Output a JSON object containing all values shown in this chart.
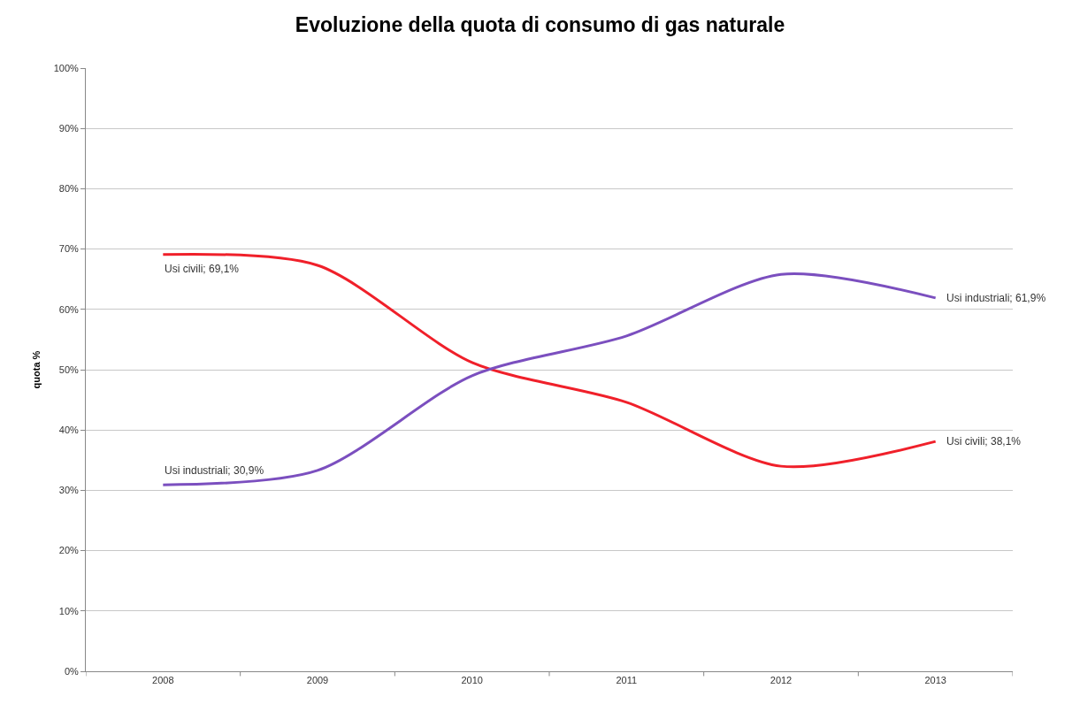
{
  "chart_data": {
    "type": "line",
    "title": "Evoluzione della quota di consumo di gas naturale",
    "ylabel": "quota %",
    "categories": [
      "2008",
      "2009",
      "2010",
      "2011",
      "2012",
      "2013"
    ],
    "series": [
      {
        "color": "#f0202a",
        "values": [
          69.1,
          67.3,
          51.2,
          44.6,
          34.0,
          38.1
        ],
        "value_labels": [
          "Usi civili; 69,1%",
          null,
          null,
          null,
          null,
          "Usi civili; 38,1%"
        ]
      },
      {
        "color": "#7b4fbf",
        "values": [
          30.9,
          33.3,
          49.0,
          55.6,
          65.8,
          61.9
        ],
        "value_labels": [
          "Usi industriali; 30,9%",
          null,
          null,
          null,
          null,
          "Usi industriali; 61,9%"
        ]
      }
    ],
    "ylim": [
      0,
      100
    ],
    "yticks": [
      {
        "value": 0,
        "label": "0%"
      },
      {
        "value": 10,
        "label": "10%"
      },
      {
        "value": 20,
        "label": "20%"
      },
      {
        "value": 30,
        "label": "30%"
      },
      {
        "value": 40,
        "label": "40%"
      },
      {
        "value": 50,
        "label": "50%"
      },
      {
        "value": 60,
        "label": "60%"
      },
      {
        "value": 70,
        "label": "70%"
      },
      {
        "value": 80,
        "label": "80%"
      },
      {
        "value": 90,
        "label": "90%"
      },
      {
        "value": 100,
        "label": "100%"
      }
    ],
    "grid": "y",
    "legend": false,
    "marker": "none",
    "line_style": "solid"
  }
}
